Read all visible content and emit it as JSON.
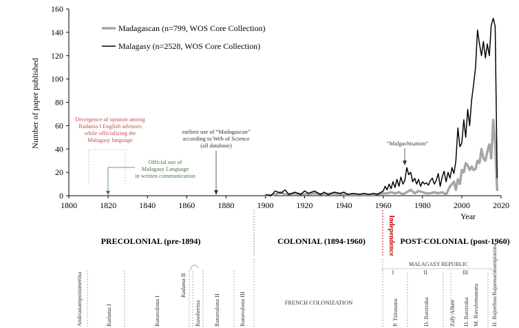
{
  "chart_data": {
    "type": "line",
    "ylabel": "Number of paper published",
    "xlabel": "Year",
    "xlim": [
      1800,
      2020
    ],
    "ylim": [
      0,
      160
    ],
    "x_ticks": [
      1800,
      1820,
      1840,
      1860,
      1880,
      1900,
      1920,
      1940,
      1960,
      1980,
      2000,
      2020
    ],
    "y_ticks": [
      0,
      20,
      40,
      60,
      80,
      100,
      120,
      140,
      160
    ],
    "grid": false,
    "legend_position": "top-left",
    "series": [
      {
        "name": "Madagascan (n=799, WOS Core Collection)",
        "color": "#a6a6a6",
        "x": [
          1900,
          1905,
          1908,
          1910,
          1915,
          1920,
          1925,
          1930,
          1935,
          1940,
          1945,
          1950,
          1955,
          1960,
          1962,
          1964,
          1966,
          1968,
          1970,
          1972,
          1974,
          1976,
          1978,
          1980,
          1982,
          1984,
          1986,
          1988,
          1990,
          1992,
          1994,
          1996,
          1997,
          1998,
          1999,
          2000,
          2001,
          2002,
          2003,
          2004,
          2005,
          2006,
          2007,
          2008,
          2009,
          2010,
          2011,
          2012,
          2013,
          2014,
          2015,
          2016,
          2017,
          2018
        ],
        "y": [
          0,
          1,
          3,
          1,
          2,
          1,
          2,
          1,
          2,
          1,
          1,
          1,
          1,
          2,
          2,
          3,
          2,
          3,
          1,
          3,
          5,
          2,
          4,
          3,
          2,
          2,
          3,
          2,
          3,
          1,
          8,
          12,
          5,
          14,
          10,
          22,
          20,
          28,
          26,
          22,
          25,
          22,
          23,
          30,
          28,
          40,
          32,
          30,
          38,
          44,
          32,
          65,
          44,
          4
        ]
      },
      {
        "name": "Malagasy (n=2528, WOS Core Collection)",
        "color": "#000000",
        "x": [
          1900,
          1903,
          1905,
          1908,
          1910,
          1912,
          1915,
          1918,
          1920,
          1922,
          1925,
          1928,
          1930,
          1932,
          1935,
          1938,
          1940,
          1942,
          1945,
          1948,
          1950,
          1953,
          1955,
          1957,
          1960,
          1961,
          1962,
          1963,
          1964,
          1965,
          1966,
          1967,
          1968,
          1969,
          1970,
          1971,
          1972,
          1973,
          1974,
          1975,
          1976,
          1977,
          1978,
          1979,
          1980,
          1981,
          1982,
          1983,
          1984,
          1985,
          1986,
          1987,
          1988,
          1989,
          1990,
          1991,
          1992,
          1993,
          1994,
          1995,
          1996,
          1997,
          1998,
          1999,
          2000,
          2001,
          2002,
          2003,
          2004,
          2005,
          2006,
          2007,
          2008,
          2009,
          2010,
          2011,
          2012,
          2013,
          2014,
          2015,
          2016,
          2017,
          2018
        ],
        "y": [
          1,
          0,
          4,
          2,
          5,
          1,
          3,
          1,
          4,
          2,
          4,
          1,
          3,
          1,
          3,
          2,
          3,
          1,
          2,
          1,
          2,
          1,
          2,
          1,
          4,
          8,
          5,
          10,
          6,
          12,
          7,
          14,
          8,
          16,
          10,
          13,
          24,
          18,
          20,
          12,
          15,
          10,
          14,
          8,
          12,
          10,
          11,
          9,
          13,
          15,
          10,
          13,
          19,
          8,
          16,
          21,
          12,
          20,
          15,
          24,
          19,
          30,
          58,
          42,
          45,
          65,
          50,
          74,
          60,
          82,
          95,
          110,
          142,
          130,
          120,
          132,
          118,
          130,
          120,
          146,
          152,
          145,
          15
        ]
      }
    ],
    "annotations": {
      "divergence": [
        "Divergence of opinion among",
        "Radama I English advisors",
        "while officializing the",
        "Malagasy language"
      ],
      "official_use": [
        "Official use of",
        "Malagasy Language",
        "in written communication"
      ],
      "earliest_use": [
        "earliest use of “Madagascan”",
        "according to Web of Science",
        "(all database)"
      ],
      "malgachisation": "“Malgachisation”"
    }
  },
  "eras": {
    "precolonial": "PRECOLONIAL (pre-1894)",
    "colonial": "COLONIAL (1894-1960)",
    "independence": "Independence",
    "postcolonial": "POST-COLONIAL (post-1960)"
  },
  "republic": {
    "title": "MALAGASY REPUBLIC",
    "numerals": [
      "I",
      "II",
      "III"
    ]
  },
  "rulers": {
    "andrianampoinimerina": "Andrianampoinimerina",
    "radama1": "Radama I",
    "ranavalona1": "Ranavalona I",
    "radama2": "Radama II",
    "rasoherina": "Rasoherina",
    "ranavalona2": "Ranavalona II",
    "ranavalona3": "Ranavalona III",
    "french_colonization": "FRENCH COLONIZATION",
    "tsiranana": "P. Tsiranana",
    "ratsiraka1": "D. Ratsiraka",
    "zafy": "Zafy Albert",
    "ratsiraka2": "D. Ratsiraka",
    "ravalomanana": "M. Ravalomanana",
    "rajoelina": "H. Rajoelina/Rajaonarimampianina"
  }
}
